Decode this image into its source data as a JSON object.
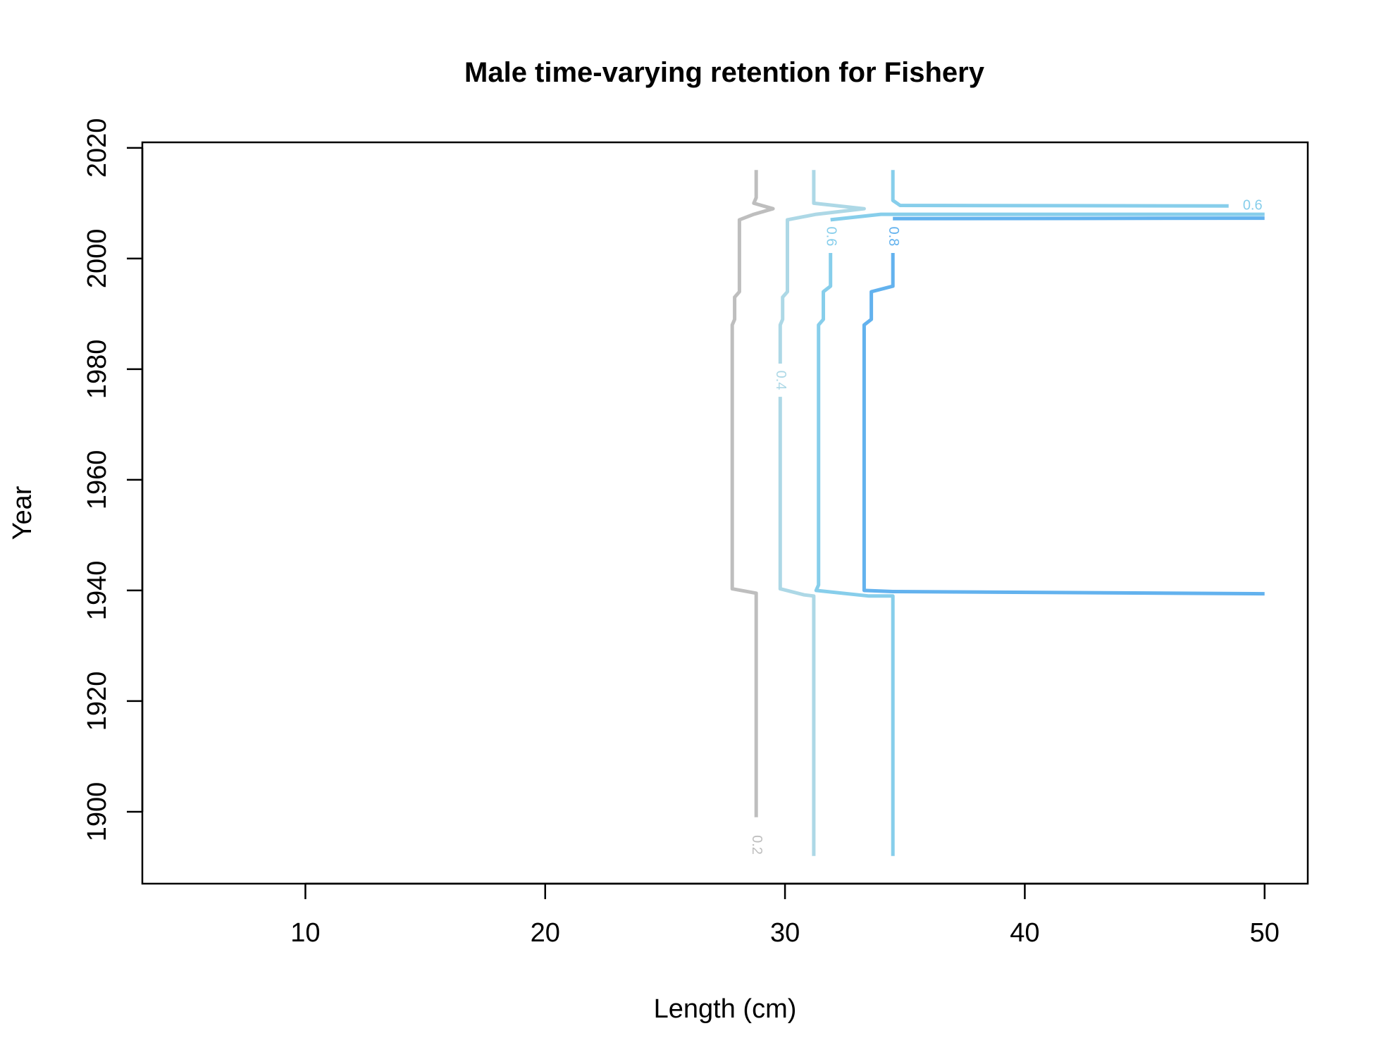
{
  "chart_data": {
    "type": "contour",
    "title": "Male time-varying retention for Fishery",
    "xlabel": "Length (cm)",
    "ylabel": "Year",
    "xlim": [
      3.2,
      51.8
    ],
    "ylim": [
      1887,
      2021
    ],
    "xticks": [
      10,
      20,
      30,
      40,
      50
    ],
    "yticks": [
      1900,
      1920,
      1940,
      1960,
      1980,
      2000,
      2020
    ],
    "grid": false,
    "legend": "none",
    "series": [
      {
        "level": "0.2",
        "color": "#bebebe",
        "x": [
          28.8,
          28.8,
          27.8,
          27.8,
          27.9,
          27.9,
          28.1,
          28.1,
          28.7,
          29.5,
          28.7,
          28.8,
          28.8
        ],
        "y": [
          1899,
          1939.5,
          1940.3,
          1988,
          1989,
          1993,
          1994,
          2007,
          2008,
          2009,
          2010,
          2011,
          2016
        ],
        "label_at": [
          28.8,
          1894
        ]
      },
      {
        "level": "0.4",
        "color": "#add8e6",
        "x": [
          29.8,
          29.8,
          29.9,
          29.9,
          30.1,
          30.1,
          31.3,
          33.3,
          31.2,
          31.2
        ],
        "y": [
          1981,
          1988,
          1989,
          1993,
          1994,
          2007,
          2008,
          2009,
          2010,
          2016
        ],
        "label_at": [
          29.8,
          1978
        ],
        "gap_after_label": true,
        "x2": [
          29.8,
          29.8,
          30.8,
          31.2,
          31.2
        ],
        "y2": [
          1975,
          1940.3,
          1939.2,
          1939,
          1892
        ]
      },
      {
        "level": "0.6",
        "color": "#87ceeb",
        "x": [
          31.9,
          31.9,
          31.6,
          31.6,
          31.4,
          31.4,
          31.3,
          31.3,
          33.5,
          34.5,
          34.5
        ],
        "y": [
          2001,
          1995,
          1994,
          1989,
          1988,
          1941,
          1940,
          1940,
          1939,
          1939,
          1892
        ],
        "label_at": [
          31.9,
          2004
        ],
        "x2": [
          31.9,
          34.0,
          50.0
        ],
        "y2": [
          2007,
          2008,
          2008
        ]
      },
      {
        "level": "0.8",
        "color": "#63b2ee",
        "x": [
          34.5,
          34.5,
          33.6,
          33.6,
          33.3,
          33.3,
          34.5,
          50.0
        ],
        "y": [
          2001,
          1995,
          1994,
          1989,
          1988,
          1940,
          1939.8,
          1939.4
        ],
        "label_at": [
          34.5,
          2004
        ],
        "x2": [
          34.5,
          50.0
        ],
        "y2": [
          2007.2,
          2007.3
        ]
      },
      {
        "level": "0.6",
        "color": "#87ceeb",
        "x": [
          34.5,
          34.5,
          34.8,
          48.5
        ],
        "y": [
          2016,
          2010.5,
          2009.6,
          2009.5
        ],
        "label_at": [
          49.5,
          2009.5
        ]
      }
    ]
  }
}
